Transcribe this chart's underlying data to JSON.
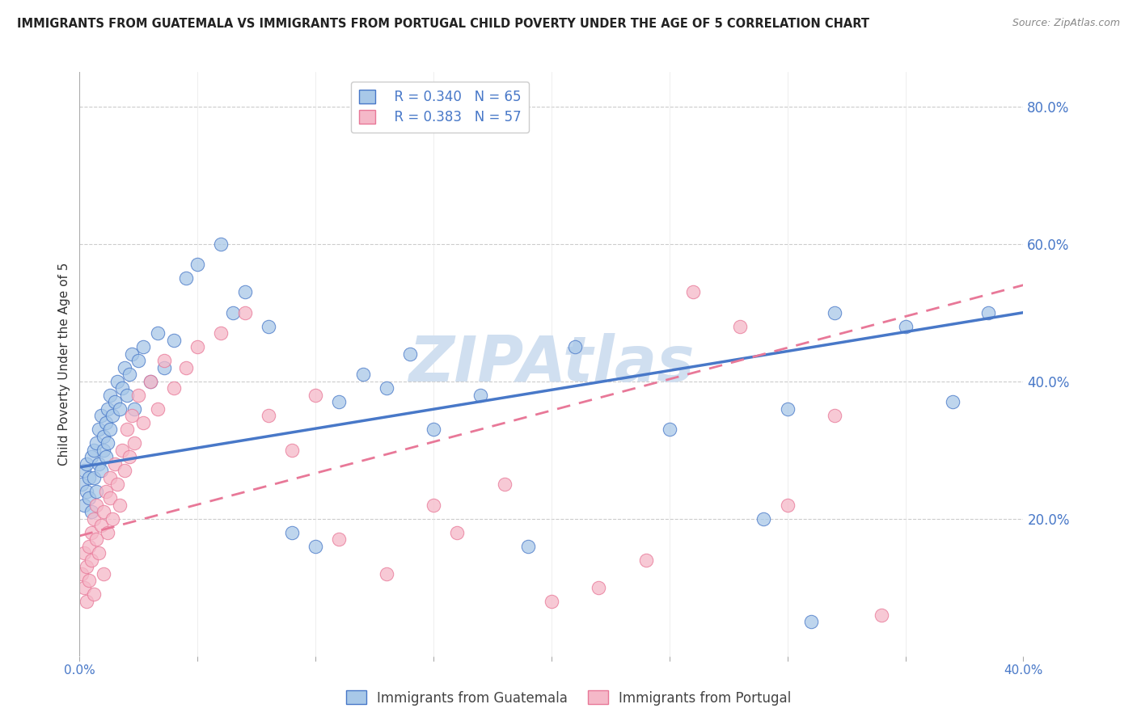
{
  "title": "IMMIGRANTS FROM GUATEMALA VS IMMIGRANTS FROM PORTUGAL CHILD POVERTY UNDER THE AGE OF 5 CORRELATION CHART",
  "source": "Source: ZipAtlas.com",
  "ylabel": "Child Poverty Under the Age of 5",
  "xlim": [
    0.0,
    0.4
  ],
  "ylim": [
    0.0,
    0.85
  ],
  "x_ticks": [
    0.0,
    0.05,
    0.1,
    0.15,
    0.2,
    0.25,
    0.3,
    0.35,
    0.4
  ],
  "x_tick_labels": [
    "0.0%",
    "",
    "",
    "",
    "",
    "",
    "",
    "",
    "40.0%"
  ],
  "y_ticks_right": [
    0.2,
    0.4,
    0.6,
    0.8
  ],
  "guatemala_R": 0.34,
  "guatemala_N": 65,
  "portugal_R": 0.383,
  "portugal_N": 57,
  "guatemala_color": "#a8c8e8",
  "portugal_color": "#f5b8c8",
  "trend_blue": "#4878c8",
  "trend_pink": "#e87898",
  "watermark": "ZIPAtlas",
  "watermark_color": "#d0dff0",
  "guatemala_x": [
    0.001,
    0.002,
    0.002,
    0.003,
    0.003,
    0.004,
    0.004,
    0.005,
    0.005,
    0.006,
    0.006,
    0.007,
    0.007,
    0.008,
    0.008,
    0.009,
    0.009,
    0.01,
    0.01,
    0.011,
    0.011,
    0.012,
    0.012,
    0.013,
    0.013,
    0.014,
    0.015,
    0.016,
    0.017,
    0.018,
    0.019,
    0.02,
    0.021,
    0.022,
    0.023,
    0.025,
    0.027,
    0.03,
    0.033,
    0.036,
    0.04,
    0.045,
    0.05,
    0.06,
    0.065,
    0.07,
    0.08,
    0.09,
    0.1,
    0.11,
    0.12,
    0.13,
    0.14,
    0.15,
    0.17,
    0.19,
    0.21,
    0.25,
    0.29,
    0.3,
    0.31,
    0.32,
    0.35,
    0.37,
    0.385
  ],
  "guatemala_y": [
    0.25,
    0.27,
    0.22,
    0.28,
    0.24,
    0.26,
    0.23,
    0.29,
    0.21,
    0.3,
    0.26,
    0.31,
    0.24,
    0.28,
    0.33,
    0.27,
    0.35,
    0.3,
    0.32,
    0.29,
    0.34,
    0.31,
    0.36,
    0.33,
    0.38,
    0.35,
    0.37,
    0.4,
    0.36,
    0.39,
    0.42,
    0.38,
    0.41,
    0.44,
    0.36,
    0.43,
    0.45,
    0.4,
    0.47,
    0.42,
    0.46,
    0.55,
    0.57,
    0.6,
    0.5,
    0.53,
    0.48,
    0.18,
    0.16,
    0.37,
    0.41,
    0.39,
    0.44,
    0.33,
    0.38,
    0.16,
    0.45,
    0.33,
    0.2,
    0.36,
    0.05,
    0.5,
    0.48,
    0.37,
    0.5
  ],
  "portugal_x": [
    0.001,
    0.002,
    0.002,
    0.003,
    0.003,
    0.004,
    0.004,
    0.005,
    0.005,
    0.006,
    0.006,
    0.007,
    0.007,
    0.008,
    0.009,
    0.01,
    0.01,
    0.011,
    0.012,
    0.013,
    0.013,
    0.014,
    0.015,
    0.016,
    0.017,
    0.018,
    0.019,
    0.02,
    0.021,
    0.022,
    0.023,
    0.025,
    0.027,
    0.03,
    0.033,
    0.036,
    0.04,
    0.045,
    0.05,
    0.06,
    0.07,
    0.08,
    0.09,
    0.1,
    0.11,
    0.13,
    0.15,
    0.16,
    0.18,
    0.2,
    0.22,
    0.24,
    0.26,
    0.28,
    0.3,
    0.32,
    0.34
  ],
  "portugal_y": [
    0.12,
    0.1,
    0.15,
    0.13,
    0.08,
    0.16,
    0.11,
    0.14,
    0.18,
    0.09,
    0.2,
    0.17,
    0.22,
    0.15,
    0.19,
    0.21,
    0.12,
    0.24,
    0.18,
    0.23,
    0.26,
    0.2,
    0.28,
    0.25,
    0.22,
    0.3,
    0.27,
    0.33,
    0.29,
    0.35,
    0.31,
    0.38,
    0.34,
    0.4,
    0.36,
    0.43,
    0.39,
    0.42,
    0.45,
    0.47,
    0.5,
    0.35,
    0.3,
    0.38,
    0.17,
    0.12,
    0.22,
    0.18,
    0.25,
    0.08,
    0.1,
    0.14,
    0.53,
    0.48,
    0.22,
    0.35,
    0.06
  ],
  "trend_blue_x0": 0.0,
  "trend_blue_y0": 0.275,
  "trend_blue_x1": 0.4,
  "trend_blue_y1": 0.5,
  "trend_pink_x0": 0.0,
  "trend_pink_y0": 0.175,
  "trend_pink_x1": 0.4,
  "trend_pink_y1": 0.54
}
